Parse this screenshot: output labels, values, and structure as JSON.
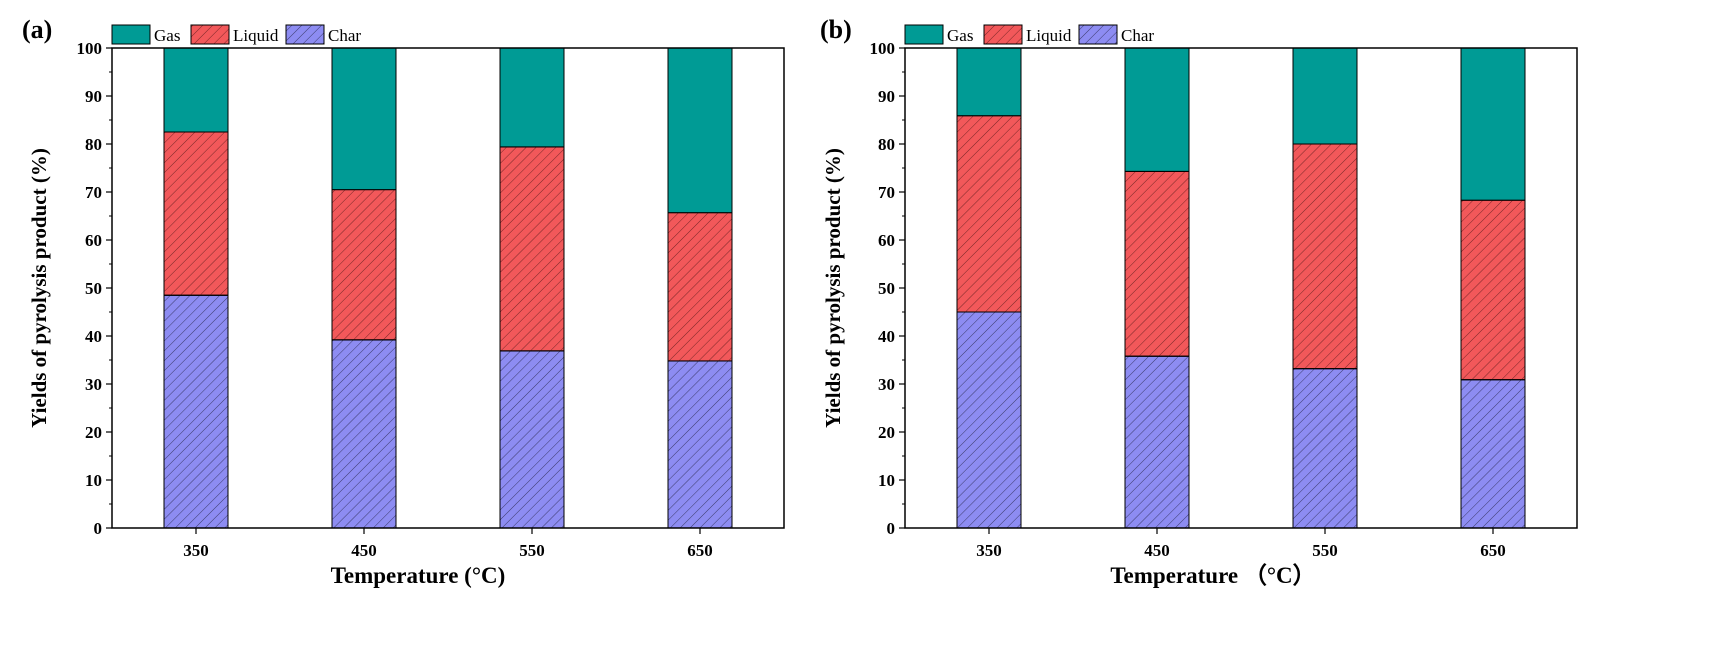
{
  "chart_data": [
    {
      "type": "bar",
      "stacked": true,
      "panel_label": "(a)",
      "categories": [
        "350",
        "450",
        "550",
        "650"
      ],
      "series": [
        {
          "name": "Char",
          "values": [
            48.5,
            39.2,
            36.9,
            34.8
          ]
        },
        {
          "name": "Liquid",
          "values": [
            34.0,
            31.3,
            42.5,
            30.9
          ]
        },
        {
          "name": "Gas",
          "values": [
            17.5,
            29.5,
            20.6,
            34.3
          ]
        }
      ],
      "legend": [
        "Gas",
        "Liquid",
        "Char"
      ],
      "xlabel": "Temperature (°C)",
      "ylabel": "Yields of pyrolysis product (%)",
      "ylim": [
        0,
        100
      ],
      "yticks": [
        "0",
        "10",
        "20",
        "30",
        "40",
        "50",
        "60",
        "70",
        "80",
        "90",
        "100"
      ],
      "grid": false,
      "legend_position": "top"
    },
    {
      "type": "bar",
      "stacked": true,
      "panel_label": "(b)",
      "categories": [
        "350",
        "450",
        "550",
        "650"
      ],
      "series": [
        {
          "name": "Char",
          "values": [
            45.0,
            35.8,
            33.2,
            30.9
          ]
        },
        {
          "name": "Liquid",
          "values": [
            40.9,
            38.5,
            46.8,
            37.4
          ]
        },
        {
          "name": "Gas",
          "values": [
            14.1,
            25.7,
            20.0,
            31.7
          ]
        }
      ],
      "legend": [
        "Gas",
        "Liquid",
        "Char"
      ],
      "xlabel": "Temperature （°C）",
      "ylabel": "Yields of pyrolysis product (%)",
      "ylim": [
        0,
        100
      ],
      "yticks": [
        "0",
        "10",
        "20",
        "30",
        "40",
        "50",
        "60",
        "70",
        "80",
        "90",
        "100"
      ],
      "grid": false,
      "legend_position": "top"
    }
  ],
  "colors": {
    "Gas": "#009b95",
    "Liquid": "#f2585a",
    "Char": "#8d8cf2"
  }
}
